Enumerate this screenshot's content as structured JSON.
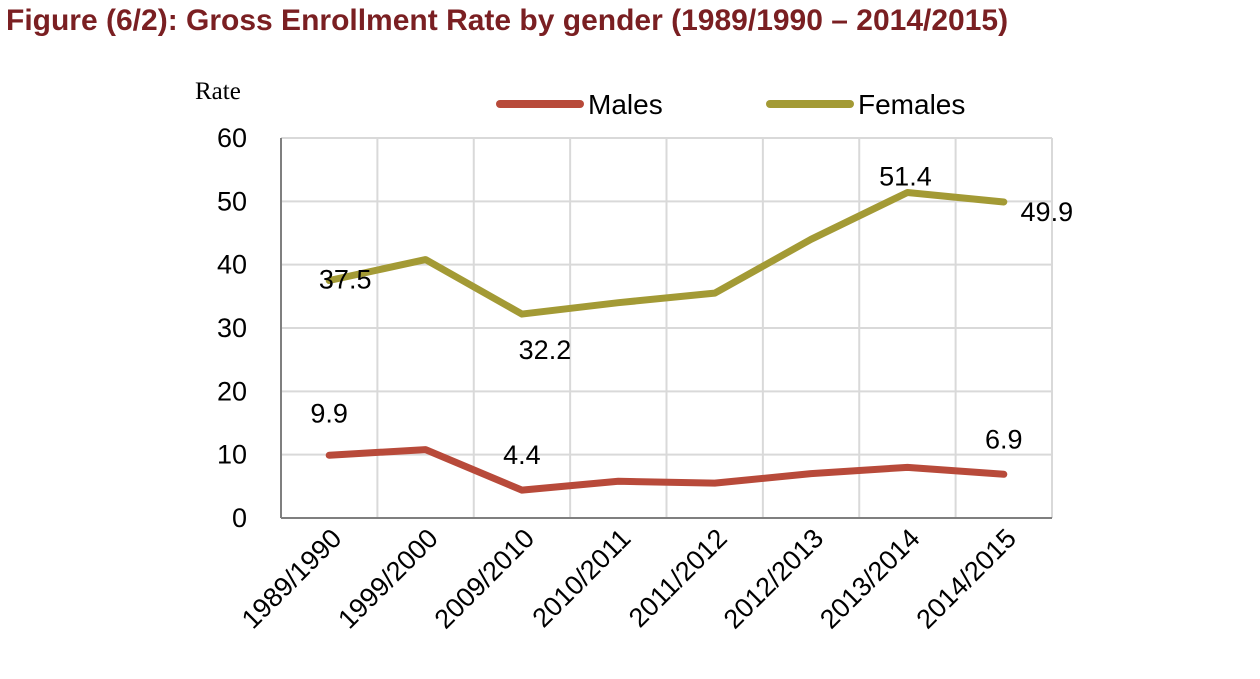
{
  "header": {
    "title": "Figure (6/2): Gross Enrollment Rate by gender (1989/1990 – 2014/2015)"
  },
  "colors": {
    "title": "#7a1f22",
    "males": "#b84a3a",
    "females": "#a39a35",
    "grid": "#d9d9d9",
    "axis": "#7f7f7f"
  },
  "chart_data": {
    "type": "line",
    "ylabel": "Rate",
    "xlabel": "",
    "ylim": [
      0,
      60
    ],
    "yticks": [
      0,
      10,
      20,
      30,
      40,
      50,
      60
    ],
    "grid": true,
    "legend_position": "top",
    "categories": [
      "1989/1990",
      "1999/2000",
      "2009/2010",
      "2010/2011",
      "2011/2012",
      "2012/2013",
      "2013/2014",
      "2014/2015"
    ],
    "series": [
      {
        "name": "Males",
        "color": "#b84a3a",
        "values": [
          9.9,
          10.8,
          4.4,
          5.8,
          5.5,
          7.0,
          8.0,
          6.9
        ],
        "labels": [
          "9.9",
          null,
          "4.4",
          null,
          null,
          null,
          null,
          "6.9"
        ]
      },
      {
        "name": "Females",
        "color": "#a39a35",
        "values": [
          37.5,
          40.8,
          32.2,
          34.0,
          35.5,
          44.0,
          51.4,
          49.9
        ],
        "labels": [
          "37.5",
          null,
          "32.2",
          null,
          null,
          null,
          "51.4",
          "49.9"
        ]
      }
    ]
  }
}
